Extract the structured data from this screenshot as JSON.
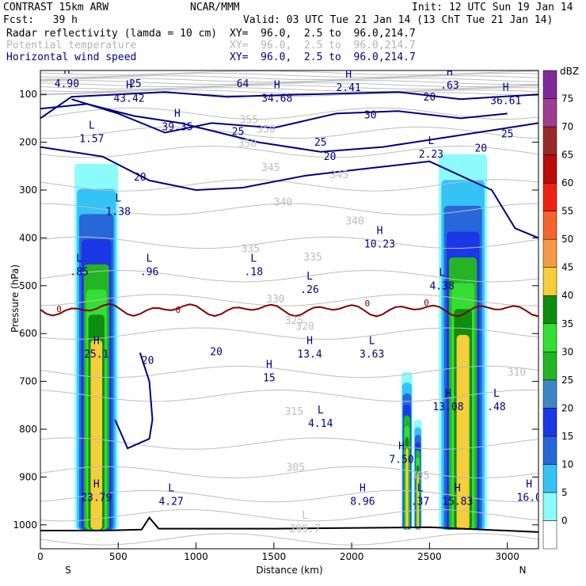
{
  "header": {
    "model": "CONTRAST 15km ARW",
    "org": "NCAR/MMM",
    "init": "Init: 12 UTC Sun 19 Jan 14",
    "fcst": "Fcst:   39 h",
    "valid": "Valid: 03 UTC Tue 21 Jan 14 (13 ChT Tue 21 Jan 14)",
    "field1_name": "Radar reflectivity (lamda = 10 cm)",
    "field1_xy": "XY=  96.0,  2.5 to  96.0,214.7",
    "field2_name": "Potential temperature",
    "field2_xy": "XY=  96.0,  2.5 to  96.0,214.7",
    "field3_name": "Horizontal wind speed",
    "field3_xy": "XY=  96.0,  2.5 to  96.0,214.7"
  },
  "colors": {
    "theta": "#bdbdbd",
    "wind": "#00007f",
    "freezing": "#7f0000",
    "terrain": "#000000",
    "refl": [
      "#8dfbfb",
      "#35c3f5",
      "#2767d8",
      "#1c37e6",
      "#3e87c5",
      "#24b524",
      "#33df33",
      "#0e8e0e",
      "#f6cd3a",
      "#f49a46",
      "#f2652c",
      "#ee2212",
      "#bb0b0b",
      "#992a2a",
      "#a13e8f",
      "#802b9b",
      "#b884c9"
    ]
  },
  "chart_data": {
    "type": "cross-section",
    "title": "Radar reflectivity (lamda = 10 cm)",
    "xlabel": "Distance (km)",
    "ylabel": "Pressure (hPa)",
    "xlim": [
      0,
      3200
    ],
    "ylim": [
      1050,
      50
    ],
    "x_ticks": [
      0,
      500,
      1000,
      1500,
      2000,
      2500,
      3000
    ],
    "y_ticks": [
      100,
      200,
      300,
      400,
      500,
      600,
      700,
      800,
      900,
      1000
    ],
    "x_end_labels": {
      "left": "S",
      "right": "N"
    },
    "colorbar": {
      "unit": "dBZ",
      "levels": [
        0,
        5,
        10,
        15,
        20,
        25,
        30,
        35,
        40,
        45,
        50,
        55,
        60,
        65,
        70,
        75
      ]
    },
    "wind_contours": [
      20,
      25,
      30
    ],
    "theta_labels": [
      {
        "x": 1340,
        "p": 160,
        "text": "355"
      },
      {
        "x": 1450,
        "p": 180,
        "text": "350"
      },
      {
        "x": 1330,
        "p": 210,
        "text": "350"
      },
      {
        "x": 1480,
        "p": 260,
        "text": "345"
      },
      {
        "x": 1920,
        "p": 275,
        "text": "345"
      },
      {
        "x": 1560,
        "p": 332,
        "text": "340"
      },
      {
        "x": 2020,
        "p": 372,
        "text": "340"
      },
      {
        "x": 1350,
        "p": 430,
        "text": "335"
      },
      {
        "x": 1750,
        "p": 447,
        "text": "335"
      },
      {
        "x": 1510,
        "p": 535,
        "text": "330"
      },
      {
        "x": 1630,
        "p": 580,
        "text": "325"
      },
      {
        "x": 1700,
        "p": 592,
        "text": "320"
      },
      {
        "x": 1630,
        "p": 770,
        "text": "315"
      },
      {
        "x": 1640,
        "p": 887,
        "text": "305"
      },
      {
        "x": 3060,
        "p": 688,
        "text": "310"
      },
      {
        "x": 2440,
        "p": 904,
        "text": "305"
      }
    ],
    "wind_labels": [
      {
        "x": 610,
        "p": 85,
        "text": "25"
      },
      {
        "x": 1300,
        "p": 85,
        "text": "64"
      },
      {
        "x": 2500,
        "p": 113,
        "text": "20"
      },
      {
        "x": 2120,
        "p": 150,
        "text": "30"
      },
      {
        "x": 1270,
        "p": 185,
        "text": "25"
      },
      {
        "x": 1800,
        "p": 207,
        "text": "25"
      },
      {
        "x": 1860,
        "p": 237,
        "text": "20"
      },
      {
        "x": 640,
        "p": 280,
        "text": "20"
      },
      {
        "x": 2830,
        "p": 220,
        "text": "20"
      },
      {
        "x": 3000,
        "p": 190,
        "text": "25"
      },
      {
        "x": 690,
        "p": 663,
        "text": "20"
      },
      {
        "x": 1130,
        "p": 645,
        "text": "20"
      }
    ],
    "freezing_labels": [
      {
        "x": 120,
        "p": 555,
        "text": "0"
      },
      {
        "x": 885,
        "p": 557,
        "text": "0"
      },
      {
        "x": 2100,
        "p": 543,
        "text": "0"
      },
      {
        "x": 2480,
        "p": 542,
        "text": "0"
      }
    ],
    "extrema": [
      {
        "type": "H",
        "x": 170,
        "p": 85,
        "value": "4.90"
      },
      {
        "type": "H",
        "x": 570,
        "p": 115,
        "value": "43.42"
      },
      {
        "type": "H",
        "x": 880,
        "p": 175,
        "value": "39.35"
      },
      {
        "type": "H",
        "x": 1520,
        "p": 115,
        "value": "34.68"
      },
      {
        "type": "H",
        "x": 1980,
        "p": 93,
        "value": "2.41"
      },
      {
        "type": "H",
        "x": 2630,
        "p": 88,
        "value": ".63"
      },
      {
        "type": "H",
        "x": 2990,
        "p": 120,
        "value": "36.61"
      },
      {
        "type": "L",
        "x": 330,
        "p": 200,
        "value": "1.57"
      },
      {
        "type": "L",
        "x": 2510,
        "p": 232,
        "value": "2.23"
      },
      {
        "type": "L",
        "x": 500,
        "p": 352,
        "value": "1.38"
      },
      {
        "type": "L",
        "x": 250,
        "p": 478,
        "value": ".85"
      },
      {
        "type": "L",
        "x": 700,
        "p": 478,
        "value": ".96"
      },
      {
        "type": "L",
        "x": 1370,
        "p": 478,
        "value": ".18"
      },
      {
        "type": "H",
        "x": 2180,
        "p": 420,
        "value": "10.23"
      },
      {
        "type": "L",
        "x": 1730,
        "p": 515,
        "value": ".26"
      },
      {
        "type": "L",
        "x": 2580,
        "p": 508,
        "value": "4.38"
      },
      {
        "type": "H",
        "x": 360,
        "p": 650,
        "value": "25.1"
      },
      {
        "type": "H",
        "x": 1730,
        "p": 650,
        "value": "13.4"
      },
      {
        "type": "L",
        "x": 2130,
        "p": 650,
        "value": "3.63"
      },
      {
        "type": "H",
        "x": 1470,
        "p": 700,
        "value": "15"
      },
      {
        "type": "H",
        "x": 2620,
        "p": 760,
        "value": "13.08"
      },
      {
        "type": "L",
        "x": 2930,
        "p": 760,
        "value": ".48"
      },
      {
        "type": "L",
        "x": 1800,
        "p": 795,
        "value": "4.14"
      },
      {
        "type": "H",
        "x": 2320,
        "p": 870,
        "value": "7.50"
      },
      {
        "type": "H",
        "x": 360,
        "p": 950,
        "value": "23.79"
      },
      {
        "type": "L",
        "x": 840,
        "p": 958,
        "value": "4.27"
      },
      {
        "type": "H",
        "x": 2070,
        "p": 958,
        "value": "8.96"
      },
      {
        "type": "L",
        "x": 2440,
        "p": 958,
        "value": ".37"
      },
      {
        "type": "H",
        "x": 2680,
        "p": 958,
        "value": "15.83"
      },
      {
        "type": "H",
        "x": 3140,
        "p": 950,
        "value": "16.0"
      },
      {
        "type": "L",
        "x": 1700,
        "p": 1015,
        "value": "299.7"
      }
    ],
    "convective_cells": [
      {
        "x0": 220,
        "x1": 500,
        "p_top": 245,
        "p_bot": 1010
      },
      {
        "x0": 2320,
        "x1": 2390,
        "p_top": 680,
        "p_bot": 1010
      },
      {
        "x0": 2400,
        "x1": 2450,
        "p_top": 780,
        "p_bot": 1010
      },
      {
        "x0": 2560,
        "x1": 2870,
        "p_top": 225,
        "p_bot": 1010
      }
    ]
  }
}
